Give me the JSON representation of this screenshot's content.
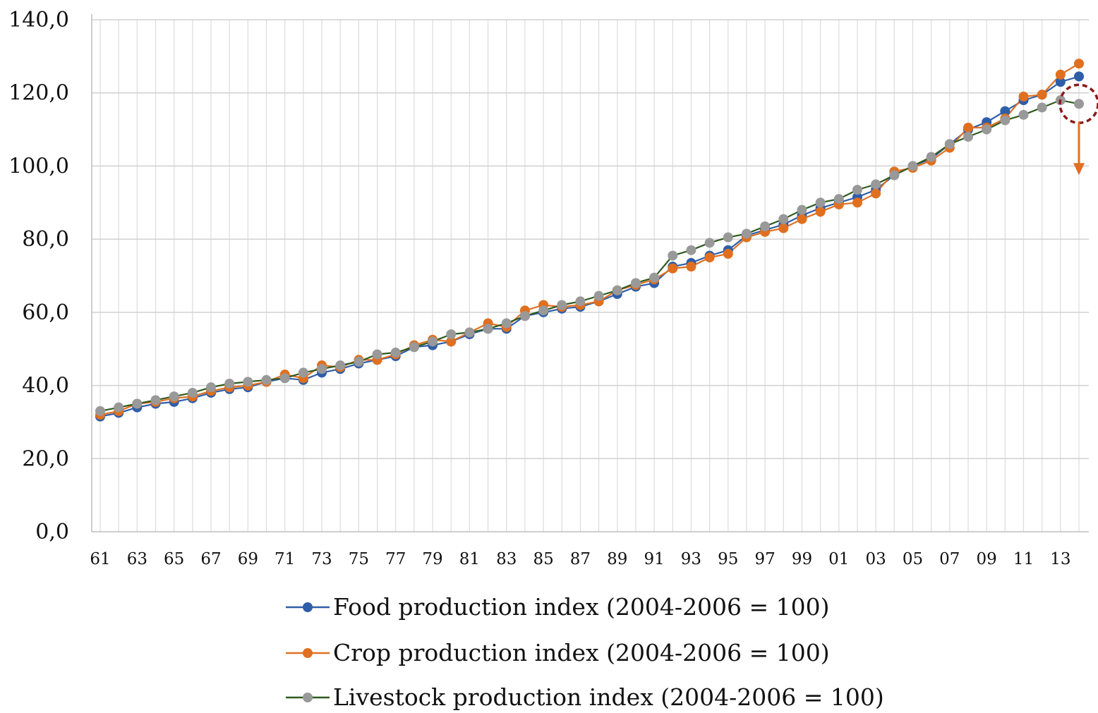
{
  "chart_data": {
    "type": "line",
    "title": "",
    "xlabel": "",
    "ylabel": "",
    "ylim": [
      0,
      140
    ],
    "yticks": [
      "0,0",
      "20,0",
      "40,0",
      "60,0",
      "80,0",
      "100,0",
      "120,0",
      "140,0"
    ],
    "ytick_values": [
      0,
      20,
      40,
      60,
      80,
      100,
      120,
      140
    ],
    "x": [
      "61",
      "62",
      "63",
      "64",
      "65",
      "66",
      "67",
      "68",
      "69",
      "70",
      "71",
      "72",
      "73",
      "74",
      "75",
      "76",
      "77",
      "78",
      "79",
      "80",
      "81",
      "82",
      "83",
      "84",
      "85",
      "86",
      "87",
      "88",
      "89",
      "90",
      "91",
      "92",
      "93",
      "94",
      "95",
      "96",
      "97",
      "98",
      "99",
      "00",
      "01",
      "02",
      "03",
      "04",
      "05",
      "06",
      "07",
      "08",
      "09",
      "10",
      "11",
      "12",
      "13",
      "14"
    ],
    "xtick_labels": [
      "61",
      "63",
      "65",
      "67",
      "69",
      "71",
      "73",
      "75",
      "77",
      "79",
      "81",
      "83",
      "85",
      "87",
      "89",
      "91",
      "93",
      "95",
      "97",
      "99",
      "01",
      "03",
      "05",
      "07",
      "09",
      "11",
      "13"
    ],
    "grid": true,
    "legend_position": "bottom",
    "series": [
      {
        "name": "Food production index (2004-2006 = 100)",
        "color": "#2f5ea8",
        "line_color": "#2f5ea8",
        "values": [
          31.5,
          32.5,
          34.0,
          35.0,
          35.5,
          36.5,
          38.0,
          39.0,
          39.5,
          41.0,
          42.0,
          41.5,
          43.5,
          44.5,
          46.0,
          47.0,
          48.0,
          50.5,
          51.0,
          52.0,
          54.0,
          55.5,
          55.5,
          59.0,
          60.0,
          61.0,
          61.5,
          63.0,
          65.0,
          67.0,
          68.0,
          72.5,
          73.5,
          75.5,
          77.0,
          81.0,
          82.5,
          84.0,
          86.5,
          88.5,
          90.0,
          91.5,
          93.5,
          97.5,
          100.0,
          102.0,
          106.0,
          110.0,
          112.0,
          115.0,
          118.0,
          119.5,
          123.0,
          124.5
        ]
      },
      {
        "name": "Crop production index (2004-2006 = 100)",
        "color": "#e07020",
        "line_color": "#e07020",
        "values": [
          32.0,
          33.0,
          35.0,
          35.5,
          36.5,
          37.0,
          38.5,
          39.5,
          40.0,
          41.0,
          43.0,
          42.0,
          45.5,
          45.0,
          47.0,
          47.0,
          48.5,
          51.0,
          52.5,
          52.0,
          54.5,
          57.0,
          56.0,
          60.5,
          62.0,
          61.5,
          62.0,
          63.0,
          66.0,
          67.5,
          69.0,
          72.0,
          72.5,
          75.0,
          76.0,
          80.5,
          82.0,
          83.0,
          85.5,
          87.5,
          89.5,
          90.0,
          92.5,
          98.5,
          99.5,
          101.5,
          105.0,
          110.5,
          110.5,
          113.0,
          119.0,
          119.5,
          125.0,
          128.0
        ]
      },
      {
        "name": "Livestock production index (2004-2006 = 100)",
        "color": "#999999",
        "line_color": "#2e5a1e",
        "values": [
          33.0,
          34.0,
          35.0,
          36.0,
          37.0,
          38.0,
          39.5,
          40.5,
          41.0,
          41.5,
          42.0,
          43.5,
          44.5,
          45.5,
          46.5,
          48.5,
          49.0,
          50.5,
          52.0,
          54.0,
          54.5,
          55.5,
          57.0,
          59.0,
          60.5,
          62.0,
          63.0,
          64.5,
          66.0,
          68.0,
          69.5,
          75.5,
          77.0,
          79.0,
          80.5,
          81.5,
          83.5,
          85.5,
          88.0,
          90.0,
          91.0,
          93.5,
          95.0,
          97.5,
          100.0,
          102.5,
          106.0,
          108.0,
          110.0,
          112.5,
          114.0,
          116.0,
          118.0,
          117.0
        ]
      }
    ],
    "annotations": [
      {
        "type": "dashed-circle",
        "target_series": 2,
        "target_index": 53,
        "color": "#8b1a1a"
      },
      {
        "type": "down-arrow",
        "target_series": 2,
        "target_index": 53,
        "color": "#e07020"
      }
    ]
  }
}
